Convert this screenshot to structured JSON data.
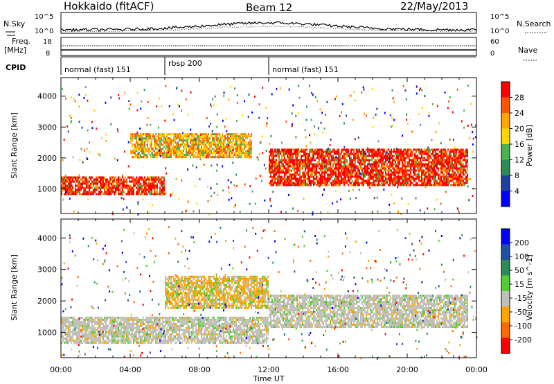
{
  "header": {
    "station": "Hokkaido (fitACF)",
    "beam": "Beam 12",
    "date": "22/May/2013"
  },
  "noise_panel": {
    "left_label": "N.Sky",
    "right_label": "N.Search",
    "ticks_left": [
      "10^5",
      "10^0"
    ],
    "ticks_right": [
      "10^5",
      "10^0"
    ]
  },
  "freq_panel": {
    "left_label_line1": "Freq.",
    "left_label_line2": "[MHz]",
    "right_label": "Nave",
    "ticks_left": [
      "18",
      "8"
    ],
    "ticks_right": [
      "60",
      "0"
    ]
  },
  "cpid": {
    "label": "CPID",
    "segments": [
      {
        "name": "normal (fast) 151",
        "start_hour": 0,
        "end_hour": 6
      },
      {
        "name": "rbsp 200",
        "start_hour": 6,
        "end_hour": 12
      },
      {
        "name": "normal (fast) 151",
        "start_hour": 12,
        "end_hour": 24
      }
    ]
  },
  "colors": {
    "power": [
      "#0000ff",
      "#2040a0",
      "#2e8b57",
      "#4caf50",
      "#ffd700",
      "#ffa500",
      "#ff5500",
      "#ff0000"
    ],
    "velocity": [
      "#0000ff",
      "#2050a0",
      "#2e8b57",
      "#55cc33",
      "#c0c0b8",
      "#ffa500",
      "#ff6a00",
      "#ff0000"
    ]
  },
  "chart_data": [
    {
      "type": "heatmap",
      "name": "power",
      "ylabel": "Slant Range [km]",
      "yticks": [
        "1000",
        "2000",
        "3000",
        "4000"
      ],
      "ylim": [
        200,
        4600
      ],
      "xlim": [
        0,
        24
      ],
      "colorbar_label": "Power [dB]",
      "colorbar_ticks": [
        "4",
        "8",
        "12",
        "16",
        "20",
        "24",
        "28"
      ],
      "bands": [
        {
          "from_hour": 0,
          "to_hour": 6,
          "range_low": 800,
          "range_high": 1400,
          "level": "high"
        },
        {
          "from_hour": 4,
          "to_hour": 11,
          "range_low": 2000,
          "range_high": 2800,
          "level": "mid"
        },
        {
          "from_hour": 12,
          "to_hour": 23.5,
          "range_low": 1100,
          "range_high": 2300,
          "level": "high"
        }
      ]
    },
    {
      "type": "heatmap",
      "name": "velocity",
      "ylabel": "Slant Range [km]",
      "yticks": [
        "1000",
        "2000",
        "3000",
        "4000"
      ],
      "ylim": [
        200,
        4600
      ],
      "xlim": [
        0,
        24
      ],
      "colorbar_label": "Velocity [m s^-1]",
      "colorbar_ticks": [
        "200",
        "100",
        "50",
        "15",
        "-15",
        "-50",
        "-100",
        "-200"
      ],
      "bands": [
        {
          "from_hour": 0,
          "to_hour": 12,
          "range_low": 700,
          "range_high": 1500,
          "level": "near-zero"
        },
        {
          "from_hour": 6,
          "to_hour": 12,
          "range_low": 1800,
          "range_high": 2800,
          "level": "negative"
        },
        {
          "from_hour": 12,
          "to_hour": 23.5,
          "range_low": 1200,
          "range_high": 2200,
          "level": "near-zero"
        }
      ]
    }
  ],
  "xaxis": {
    "ticks": [
      "00:00",
      "04:00",
      "08:00",
      "12:00",
      "16:00",
      "20:00",
      "00:00"
    ],
    "label": "Time UT"
  }
}
